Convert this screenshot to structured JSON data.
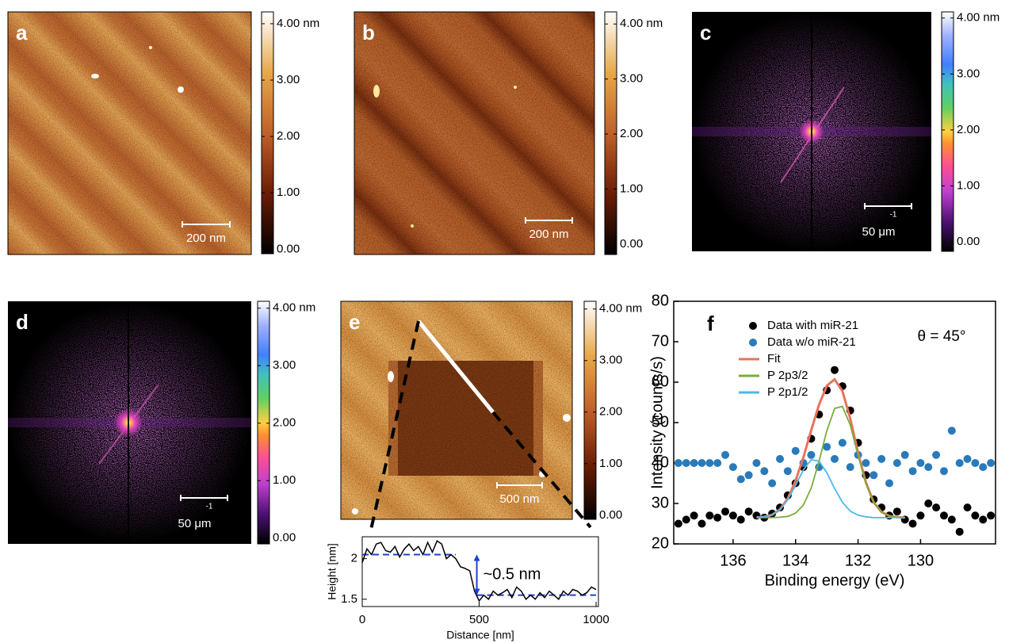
{
  "panels": [
    {
      "label": "a",
      "scale_bar": "200 nm",
      "colorbar_lim": [
        -0.08,
        4.21
      ],
      "colorbar_ticks": [
        {
          "value": 4,
          "label": "4.00 nm"
        },
        {
          "value": 3,
          "label": "3.00"
        },
        {
          "value": 2,
          "label": "2.00"
        },
        {
          "value": 1,
          "label": "1.00"
        },
        {
          "value": 0,
          "label": "0.00"
        }
      ]
    },
    {
      "label": "b",
      "scale_bar": "200 nm",
      "colorbar_lim": [
        -0.19,
        4.22
      ],
      "colorbar_ticks": [
        {
          "value": 4,
          "label": "4.00 nm"
        },
        {
          "value": 3,
          "label": "3.00"
        },
        {
          "value": 2,
          "label": "2.00"
        },
        {
          "value": 1,
          "label": "1.00"
        },
        {
          "value": 0,
          "label": "0.00"
        }
      ]
    },
    {
      "label": "c",
      "scale_bar": "50 μm",
      "scale_bar_exponent": "-1",
      "colorbar_lim": [
        -0.17,
        4.11
      ],
      "colorbar_ticks": [
        {
          "value": 4,
          "label": "4.00 nm"
        },
        {
          "value": 3,
          "label": "3.00"
        },
        {
          "value": 2,
          "label": "2.00"
        },
        {
          "value": 1,
          "label": "1.00"
        },
        {
          "value": 0,
          "label": "0.00"
        }
      ]
    },
    {
      "label": "d",
      "scale_bar": "50 μm",
      "scale_bar_exponent": "-1",
      "colorbar_lim": [
        -0.1,
        4.12
      ],
      "colorbar_ticks": [
        {
          "value": 4,
          "label": "4.00 nm"
        },
        {
          "value": 3,
          "label": "3.00"
        },
        {
          "value": 2,
          "label": "2.00"
        },
        {
          "value": 1,
          "label": "1.00"
        },
        {
          "value": 0,
          "label": "0.00"
        }
      ]
    },
    {
      "label": "e",
      "scale_bar": "500 nm",
      "colorbar_lim": [
        -0.08,
        4.15
      ],
      "colorbar_ticks": [
        {
          "value": 4,
          "label": "4.00 nm"
        },
        {
          "value": 3,
          "label": "3.00"
        },
        {
          "value": 2,
          "label": "2.00"
        },
        {
          "value": 1,
          "label": "1.00"
        },
        {
          "value": 0,
          "label": "0.00"
        }
      ]
    }
  ],
  "chart_data": [
    {
      "type": "line",
      "x_label": "Distance [nm]",
      "y_label": "Height [nm]",
      "color": "#000000",
      "x": [
        0,
        20,
        40,
        60,
        80,
        100,
        120,
        140,
        160,
        180,
        200,
        220,
        240,
        260,
        280,
        300,
        320,
        340,
        360,
        380,
        400,
        420,
        440,
        460,
        480,
        500,
        520,
        540,
        560,
        580,
        600,
        620,
        640,
        660,
        680,
        700,
        720,
        740,
        760,
        780,
        800,
        820,
        840,
        860,
        880,
        900,
        920,
        940,
        960,
        980,
        1000
      ],
      "values": [
        1.95,
        2.12,
        2.05,
        2.18,
        2.2,
        2.1,
        2.08,
        2.15,
        2.02,
        2.12,
        2.18,
        2.1,
        2.15,
        2.05,
        2.2,
        2.08,
        2.22,
        2.18,
        2.0,
        2.05,
        2.0,
        1.9,
        1.88,
        1.85,
        1.6,
        1.48,
        1.55,
        1.5,
        1.6,
        1.55,
        1.58,
        1.62,
        1.52,
        1.65,
        1.6,
        1.5,
        1.55,
        1.5,
        1.58,
        1.52,
        1.6,
        1.55,
        1.5,
        1.6,
        1.55,
        1.62,
        1.6,
        1.55,
        1.58,
        1.65,
        1.62
      ],
      "xlim": [
        0,
        1010
      ],
      "ylim": [
        1.41,
        2.27
      ],
      "xticks": [
        0,
        500,
        1000
      ],
      "yticks": [
        1.5,
        2
      ],
      "reference_color": "#1f3fd8",
      "reference_levels": [
        {
          "value": 2.05,
          "x_range": [
            0,
            400
          ]
        },
        {
          "value": 1.55,
          "x_range": [
            490,
            1000
          ]
        }
      ],
      "annotation": "~0.5 nm"
    },
    {
      "type": "scatter",
      "label": "f",
      "x_label": "Binding energy (eV)",
      "y_label": "Intensity (counts/s)",
      "annotation": "θ = 45°",
      "xlim": [
        137.9,
        127.6
      ],
      "ylim": [
        20,
        80
      ],
      "xticks": [
        136,
        134,
        132,
        130
      ],
      "yticks": [
        20,
        30,
        40,
        50,
        60,
        70,
        80
      ],
      "series": [
        {
          "name": "Data with miR-21",
          "mode": "markers",
          "color": "#000000",
          "x": [
            137.75,
            137.5,
            137.25,
            137,
            136.75,
            136.5,
            136.25,
            136,
            135.75,
            135.5,
            135.25,
            135,
            134.75,
            134.5,
            134.25,
            134,
            133.75,
            133.5,
            133.25,
            133,
            132.75,
            132.5,
            132.25,
            132,
            131.75,
            131.5,
            131.25,
            131,
            130.75,
            130.5,
            130.25,
            130,
            129.75,
            129.5,
            129.25,
            129,
            128.75,
            128.5,
            128.25,
            128,
            127.75
          ],
          "values": [
            25,
            26,
            27,
            25,
            27,
            26.5,
            28,
            27,
            26,
            28,
            27,
            26.5,
            27.5,
            29,
            32,
            35,
            39,
            46,
            52,
            58,
            63,
            59,
            53,
            45,
            37,
            31,
            29,
            27,
            28,
            26,
            25,
            27,
            30,
            29,
            27,
            26,
            23,
            29,
            27,
            26,
            27
          ]
        },
        {
          "name": "Data w/o miR-21",
          "mode": "markers",
          "color": "#2a7ab9",
          "x": [
            137.75,
            137.5,
            137.25,
            137,
            136.75,
            136.5,
            136.25,
            136,
            135.75,
            135.5,
            135.25,
            135,
            134.75,
            134.5,
            134.25,
            134,
            133.75,
            133.5,
            133.25,
            133,
            132.75,
            132.5,
            132.25,
            132,
            131.75,
            131.5,
            131.25,
            131,
            130.75,
            130.5,
            130.25,
            130,
            129.75,
            129.5,
            129.25,
            129,
            128.75,
            128.5,
            128.25,
            128,
            127.75
          ],
          "values": [
            40,
            40,
            40,
            40,
            40,
            40,
            42,
            39,
            36,
            37,
            40,
            38,
            35,
            41,
            38,
            43,
            40,
            42,
            39,
            44,
            41,
            45,
            39,
            42,
            40,
            37,
            41,
            35,
            40,
            42,
            38,
            40,
            39,
            42,
            38,
            48,
            40,
            41,
            40,
            39,
            40
          ]
        },
        {
          "name": "Fit",
          "mode": "line",
          "color": "#e8735a",
          "x": [
            135.25,
            135,
            134.75,
            134.5,
            134.25,
            134,
            133.75,
            133.5,
            133.25,
            133,
            132.75,
            132.5,
            132.25,
            132,
            131.75,
            131.5,
            131.25,
            131,
            130.75,
            130.5
          ],
          "values": [
            26.55,
            26.7,
            27.2,
            28.5,
            31.2,
            35.6,
            41.4,
            48.1,
            54.4,
            59.1,
            60.7,
            57.8,
            51.0,
            42.5,
            35.2,
            30.3,
            27.9,
            26.9,
            26.6,
            26.5
          ]
        },
        {
          "name": "P 2p3/2",
          "mode": "line",
          "color": "#7aad3a",
          "x": [
            135.25,
            135,
            134.75,
            134.5,
            134.25,
            134,
            133.75,
            133.5,
            133.25,
            133,
            132.75,
            132.5,
            132.25,
            132,
            131.75,
            131.5,
            131.25,
            131,
            130.75,
            130.5
          ],
          "values": [
            26.5,
            26.5,
            26.5,
            26.6,
            26.8,
            27.6,
            29.6,
            33.8,
            40.4,
            48.0,
            53.5,
            54.0,
            49.4,
            41.9,
            35.0,
            30.3,
            27.9,
            26.9,
            26.6,
            26.5
          ]
        },
        {
          "name": "P 2p1/2",
          "mode": "line",
          "color": "#4db8e8",
          "x": [
            135.25,
            135,
            134.75,
            134.5,
            134.25,
            134,
            133.75,
            133.5,
            133.25,
            133,
            132.75,
            132.5,
            132.25,
            132,
            131.75,
            131.5,
            131.25,
            131,
            130.75,
            130.5
          ],
          "values": [
            26.55,
            26.7,
            27.2,
            28.5,
            30.9,
            34.5,
            38.3,
            40.8,
            40.5,
            37.6,
            33.7,
            30.3,
            28.1,
            27.1,
            26.7,
            26.5,
            26.5,
            26.5,
            26.5,
            26.5
          ]
        }
      ]
    }
  ]
}
